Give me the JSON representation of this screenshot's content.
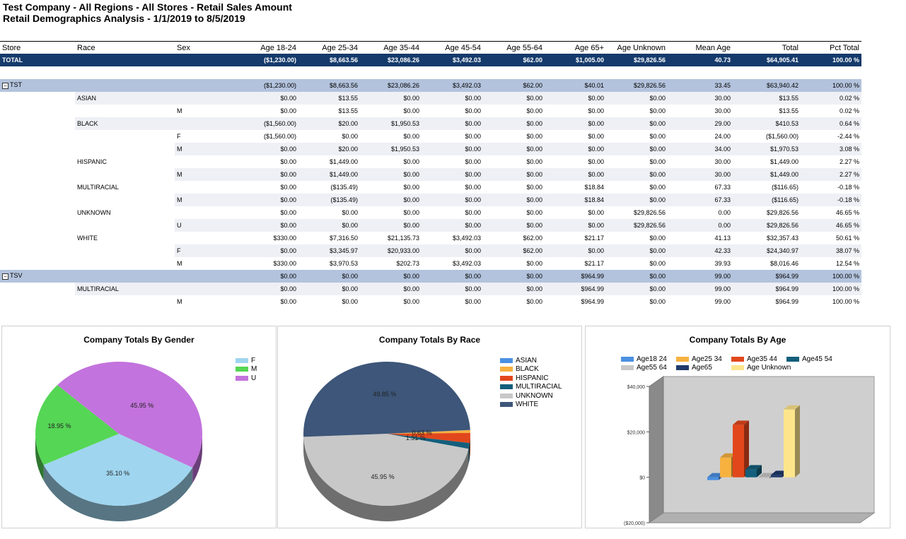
{
  "report": {
    "title_line1": "Test Company - All Regions - All Stores - Retail Sales Amount",
    "title_line2": "Retail Demographics Analysis - 1/1/2019 to 8/5/2019"
  },
  "table": {
    "columns": [
      "Store",
      "Race",
      "Sex",
      "Age 18-24",
      "Age 25-34",
      "Age 35-44",
      "Age 45-54",
      "Age 55-64",
      "Age 65+",
      "Age Unknown",
      "Mean Age",
      "Total",
      "Pct Total"
    ],
    "total_row": [
      "TOTAL",
      "",
      "",
      "($1,230.00)",
      "$8,663.56",
      "$23,086.26",
      "$3,492.03",
      "$62.00",
      "$1,005.00",
      "$29,826.56",
      "40.73",
      "$64,905.41",
      "100.00 %"
    ],
    "expander_symbol": "−",
    "rows": [
      {
        "kind": "group",
        "store": "TST",
        "race": "",
        "sex": "",
        "v": [
          "($1,230.00)",
          "$8,663.56",
          "$23,086.26",
          "$3,492.03",
          "$62.00",
          "$40.01",
          "$29,826.56",
          "33.45",
          "$63,940.42",
          "100.00 %"
        ]
      },
      {
        "kind": "alt",
        "store": "",
        "race": "ASIAN",
        "sex": "",
        "v": [
          "$0.00",
          "$13.55",
          "$0.00",
          "$0.00",
          "$0.00",
          "$0.00",
          "$0.00",
          "30.00",
          "$13.55",
          "0.02 %"
        ]
      },
      {
        "kind": "plain",
        "store": "",
        "race": "",
        "sex": "M",
        "v": [
          "$0.00",
          "$13.55",
          "$0.00",
          "$0.00",
          "$0.00",
          "$0.00",
          "$0.00",
          "30.00",
          "$13.55",
          "0.02 %"
        ]
      },
      {
        "kind": "alt",
        "store": "",
        "race": "BLACK",
        "sex": "",
        "v": [
          "($1,560.00)",
          "$20.00",
          "$1,950.53",
          "$0.00",
          "$0.00",
          "$0.00",
          "$0.00",
          "29.00",
          "$410.53",
          "0.64 %"
        ]
      },
      {
        "kind": "plain",
        "store": "",
        "race": "",
        "sex": "F",
        "v": [
          "($1,560.00)",
          "$0.00",
          "$0.00",
          "$0.00",
          "$0.00",
          "$0.00",
          "$0.00",
          "24.00",
          "($1,560.00)",
          "-2.44 %"
        ]
      },
      {
        "kind": "alt",
        "store": "",
        "race": "",
        "sex": "M",
        "v": [
          "$0.00",
          "$20.00",
          "$1,950.53",
          "$0.00",
          "$0.00",
          "$0.00",
          "$0.00",
          "34.00",
          "$1,970.53",
          "3.08 %"
        ]
      },
      {
        "kind": "plain",
        "store": "",
        "race": "HISPANIC",
        "sex": "",
        "v": [
          "$0.00",
          "$1,449.00",
          "$0.00",
          "$0.00",
          "$0.00",
          "$0.00",
          "$0.00",
          "30.00",
          "$1,449.00",
          "2.27 %"
        ]
      },
      {
        "kind": "alt",
        "store": "",
        "race": "",
        "sex": "M",
        "v": [
          "$0.00",
          "$1,449.00",
          "$0.00",
          "$0.00",
          "$0.00",
          "$0.00",
          "$0.00",
          "30.00",
          "$1,449.00",
          "2.27 %"
        ]
      },
      {
        "kind": "plain",
        "store": "",
        "race": "MULTIRACIAL",
        "sex": "",
        "v": [
          "$0.00",
          "($135.49)",
          "$0.00",
          "$0.00",
          "$0.00",
          "$18.84",
          "$0.00",
          "67.33",
          "($116.65)",
          "-0.18 %"
        ]
      },
      {
        "kind": "alt",
        "store": "",
        "race": "",
        "sex": "M",
        "v": [
          "$0.00",
          "($135.49)",
          "$0.00",
          "$0.00",
          "$0.00",
          "$18.84",
          "$0.00",
          "67.33",
          "($116.65)",
          "-0.18 %"
        ]
      },
      {
        "kind": "plain",
        "store": "",
        "race": "UNKNOWN",
        "sex": "",
        "v": [
          "$0.00",
          "$0.00",
          "$0.00",
          "$0.00",
          "$0.00",
          "$0.00",
          "$29,826.56",
          "0.00",
          "$29,826.56",
          "46.65 %"
        ]
      },
      {
        "kind": "alt",
        "store": "",
        "race": "",
        "sex": "U",
        "v": [
          "$0.00",
          "$0.00",
          "$0.00",
          "$0.00",
          "$0.00",
          "$0.00",
          "$29,826.56",
          "0.00",
          "$29,826.56",
          "46.65 %"
        ]
      },
      {
        "kind": "plain",
        "store": "",
        "race": "WHITE",
        "sex": "",
        "v": [
          "$330.00",
          "$7,316.50",
          "$21,135.73",
          "$3,492.03",
          "$62.00",
          "$21.17",
          "$0.00",
          "41.13",
          "$32,357.43",
          "50.61 %"
        ]
      },
      {
        "kind": "alt",
        "store": "",
        "race": "",
        "sex": "F",
        "v": [
          "$0.00",
          "$3,345.97",
          "$20,933.00",
          "$0.00",
          "$62.00",
          "$0.00",
          "$0.00",
          "42.33",
          "$24,340.97",
          "38.07 %"
        ]
      },
      {
        "kind": "plain",
        "store": "",
        "race": "",
        "sex": "M",
        "v": [
          "$330.00",
          "$3,970.53",
          "$202.73",
          "$3,492.03",
          "$0.00",
          "$21.17",
          "$0.00",
          "39.93",
          "$8,016.46",
          "12.54 %"
        ]
      },
      {
        "kind": "group",
        "store": "TSV",
        "race": "",
        "sex": "",
        "v": [
          "$0.00",
          "$0.00",
          "$0.00",
          "$0.00",
          "$0.00",
          "$964.99",
          "$0.00",
          "99.00",
          "$964.99",
          "100.00 %"
        ]
      },
      {
        "kind": "alt",
        "store": "",
        "race": "MULTIRACIAL",
        "sex": "",
        "v": [
          "$0.00",
          "$0.00",
          "$0.00",
          "$0.00",
          "$0.00",
          "$964.99",
          "$0.00",
          "99.00",
          "$964.99",
          "100.00 %"
        ]
      },
      {
        "kind": "plain",
        "store": "",
        "race": "",
        "sex": "M",
        "v": [
          "$0.00",
          "$0.00",
          "$0.00",
          "$0.00",
          "$0.00",
          "$964.99",
          "$0.00",
          "99.00",
          "$964.99",
          "100.00 %"
        ]
      }
    ]
  },
  "colors": {
    "total_row_bg": "#153a6b",
    "group_row_bg": "#b3c3dd",
    "alt_row_bg": "#eef0f5"
  },
  "chart_data": [
    {
      "type": "pie",
      "title": "Company Totals By Gender",
      "labels": [
        "F",
        "M",
        "U"
      ],
      "values": [
        35.1,
        18.95,
        45.95
      ],
      "value_labels": [
        "35.10 %",
        "18.95 %",
        "45.95 %"
      ],
      "colors": [
        "#9fd5ef",
        "#55d655",
        "#c373dd"
      ],
      "legend_position": "top-right"
    },
    {
      "type": "pie",
      "title": "Company Totals By Race",
      "labels": [
        "ASIAN",
        "BLACK",
        "HISPANIC",
        "MULTIRACIAL",
        "UNKNOWN",
        "WHITE"
      ],
      "values": [
        0.02,
        0.63,
        2.23,
        1.31,
        45.95,
        49.85
      ],
      "value_labels": [
        "",
        "0.63 %",
        "",
        "1.31 %",
        "45.95 %",
        "49.85 %"
      ],
      "colors": [
        "#4a90e2",
        "#f6b13f",
        "#e2471c",
        "#145f7c",
        "#c8c8c8",
        "#3d5679"
      ],
      "legend_position": "top-right"
    },
    {
      "type": "bar",
      "title": "Company Totals By Age",
      "categories": [
        "Age18 24",
        "Age25 34",
        "Age35 44",
        "Age45 54",
        "Age55 64",
        "Age65",
        "Age Unknown"
      ],
      "values": [
        -1230.0,
        8663.56,
        23086.26,
        3492.03,
        62.0,
        1005.0,
        29826.56
      ],
      "colors": [
        "#4a90e2",
        "#f6b13f",
        "#e2471c",
        "#145f7c",
        "#c8c8c8",
        "#1f3a6b",
        "#fde58c"
      ],
      "ylim": [
        -20000,
        40000
      ],
      "yticks": [
        -20000,
        0,
        20000,
        40000
      ],
      "ytick_labels": [
        "($20,000)",
        "$0",
        "$20,000",
        "$40,000"
      ],
      "grid": false,
      "legend_position": "top"
    }
  ]
}
